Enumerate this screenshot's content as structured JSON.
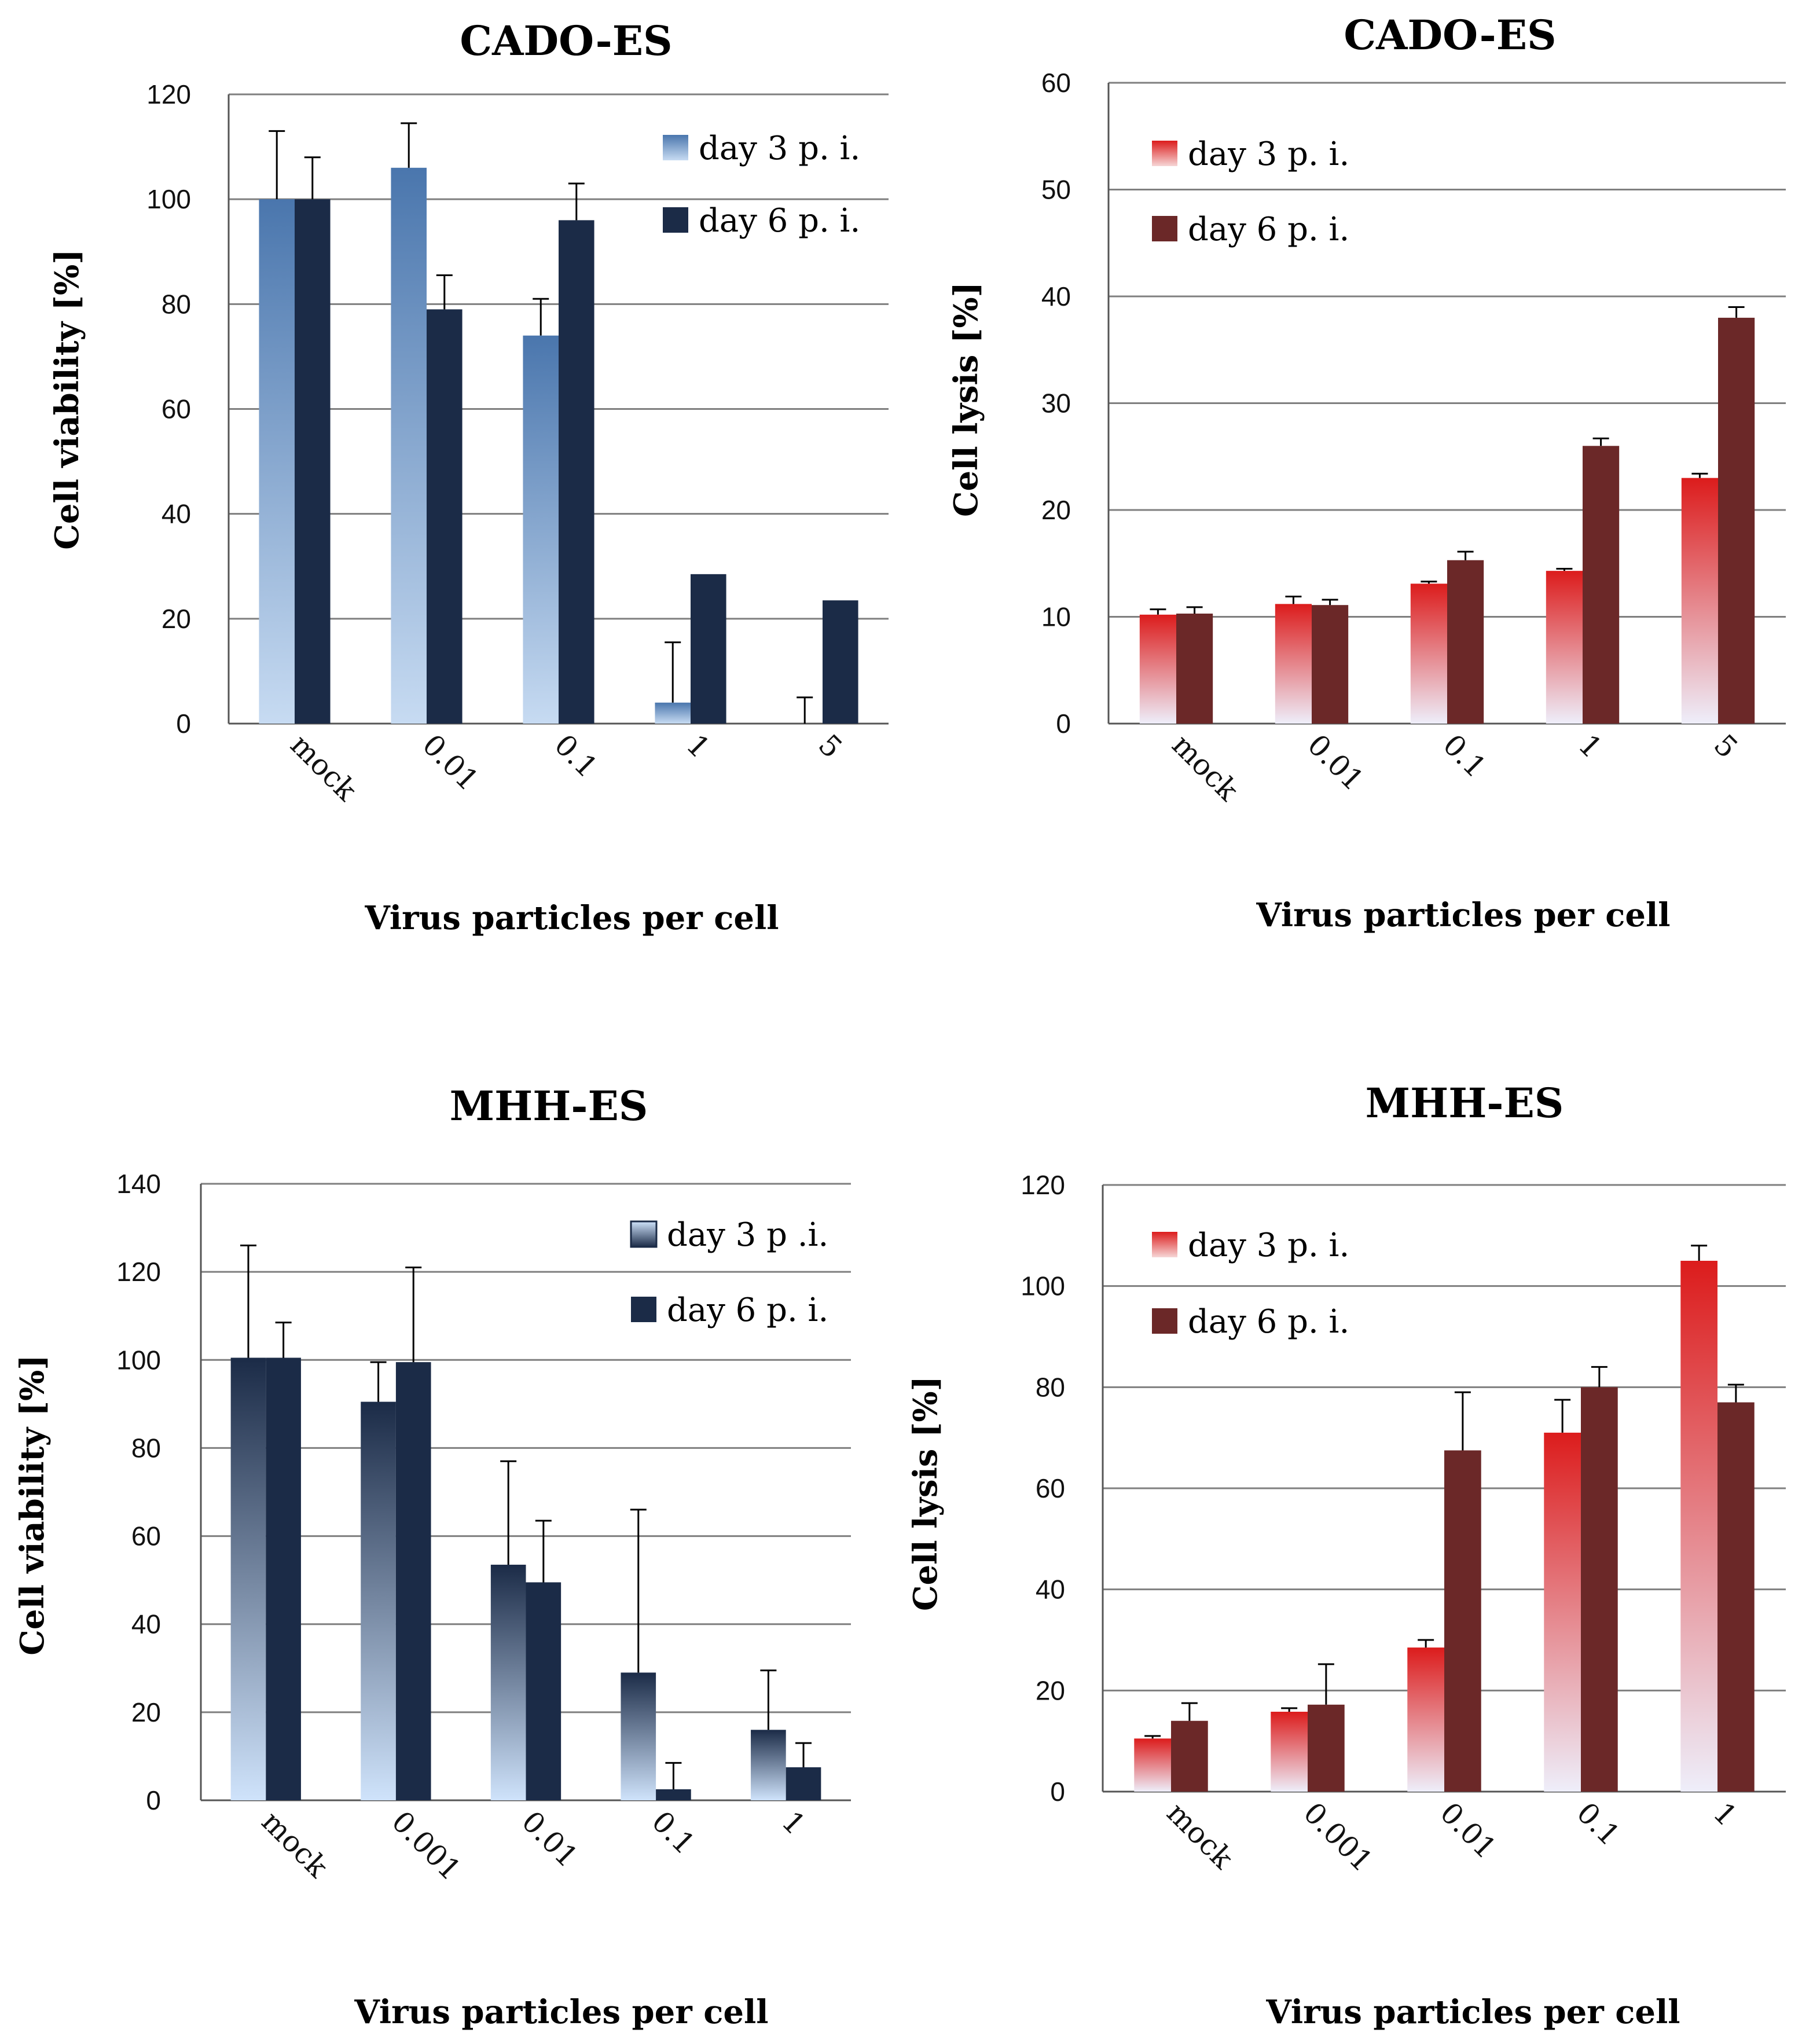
{
  "colors": {
    "background": "#ffffff",
    "grid": "#7f7f7f",
    "axis": "#555555"
  },
  "chart_data": [
    {
      "type": "bar",
      "title": "CADO-ES",
      "xlabel": "Virus particles per cell",
      "ylabel": "Cell viability [%]",
      "ylim": [
        0,
        120
      ],
      "ytick_step": 20,
      "grid": true,
      "legend_position": "top-right",
      "categories": [
        "mock",
        "0.01",
        "0.1",
        "1",
        "5"
      ],
      "series": [
        {
          "name": "day 3 p. i.",
          "values": [
            100,
            106,
            74,
            4,
            0
          ],
          "errors": [
            13,
            8.5,
            7,
            11.5,
            5
          ],
          "gradient": [
            "#c7dbf2",
            "#4a76ad"
          ],
          "legend_gradient": [
            "#c7dbf2",
            "#4a76ad"
          ]
        },
        {
          "name": "day 6 p. i.",
          "values": [
            100,
            79,
            96,
            28.5,
            23.5
          ],
          "errors": [
            8,
            6.5,
            7,
            0,
            0
          ],
          "gradient": [
            "#1b2b47",
            "#1b2b47"
          ],
          "legend_gradient": [
            "#1b2b47",
            "#1b2b47"
          ]
        }
      ]
    },
    {
      "type": "bar",
      "title": "CADO-ES",
      "xlabel": "Virus particles per cell",
      "ylabel": "Cell lysis [%]",
      "ylim": [
        0,
        60
      ],
      "ytick_step": 10,
      "grid": true,
      "legend_position": "top-left",
      "categories": [
        "mock",
        "0.01",
        "0.1",
        "1",
        "5"
      ],
      "series": [
        {
          "name": "day 3 p. i.",
          "values": [
            10.2,
            11.2,
            13.1,
            14.3,
            23
          ],
          "errors": [
            0.5,
            0.7,
            0.2,
            0.2,
            0.4
          ],
          "gradient": [
            "#eeeefa",
            "#dc1c1c"
          ],
          "legend_gradient": [
            "#f6d6d6",
            "#dc1c1c"
          ]
        },
        {
          "name": "day 6 p. i.",
          "values": [
            10.3,
            11.1,
            15.3,
            26,
            38
          ],
          "errors": [
            0.6,
            0.5,
            0.8,
            0.7,
            1
          ],
          "gradient": [
            "#6b2828",
            "#6b2828"
          ],
          "legend_gradient": [
            "#6b2828",
            "#6b2828"
          ]
        }
      ]
    },
    {
      "type": "bar",
      "title": "MHH-ES",
      "xlabel": "Virus particles per cell",
      "ylabel": "Cell viability [%]",
      "ylim": [
        0,
        140
      ],
      "ytick_step": 20,
      "grid": true,
      "legend_position": "top-right",
      "categories": [
        "mock",
        "0.001",
        "0.01",
        "0.1",
        "1"
      ],
      "series": [
        {
          "name": "day 3 p .i.",
          "values": [
            100.5,
            90.5,
            53.5,
            29,
            16
          ],
          "errors": [
            25.5,
            9,
            23.5,
            37,
            13.5
          ],
          "gradient": [
            "#cfe3fb",
            "#1b2b47"
          ],
          "legend_gradient": [
            "#1b2b47",
            "#cfe3fb"
          ]
        },
        {
          "name": "day 6 p. i.",
          "values": [
            100.5,
            99.5,
            49.5,
            2.5,
            7.5
          ],
          "errors": [
            8,
            21.5,
            14,
            6,
            5.5
          ],
          "gradient": [
            "#1b2b47",
            "#1b2b47"
          ],
          "legend_gradient": [
            "#1b2b47",
            "#1b2b47"
          ]
        }
      ]
    },
    {
      "type": "bar",
      "title": "MHH-ES",
      "xlabel": "Virus particles per cell",
      "ylabel": "Cell lysis [%]",
      "ylim": [
        0,
        120
      ],
      "ytick_step": 20,
      "grid": true,
      "legend_position": "top-left",
      "categories": [
        "mock",
        "0.001",
        "0.01",
        "0.1",
        "1"
      ],
      "series": [
        {
          "name": "day 3 p. i.",
          "values": [
            10.5,
            15.8,
            28.5,
            71,
            105
          ],
          "errors": [
            0.5,
            0.7,
            1.5,
            6.5,
            3
          ],
          "gradient": [
            "#eeeefa",
            "#dc1c1c"
          ],
          "legend_gradient": [
            "#f6d6d6",
            "#dc1c1c"
          ]
        },
        {
          "name": "day 6 p. i.",
          "values": [
            14,
            17.2,
            67.5,
            80,
            77
          ],
          "errors": [
            3.5,
            8,
            11.5,
            4,
            3.5
          ],
          "gradient": [
            "#6b2828",
            "#6b2828"
          ],
          "legend_gradient": [
            "#6b2828",
            "#6b2828"
          ]
        }
      ]
    }
  ]
}
